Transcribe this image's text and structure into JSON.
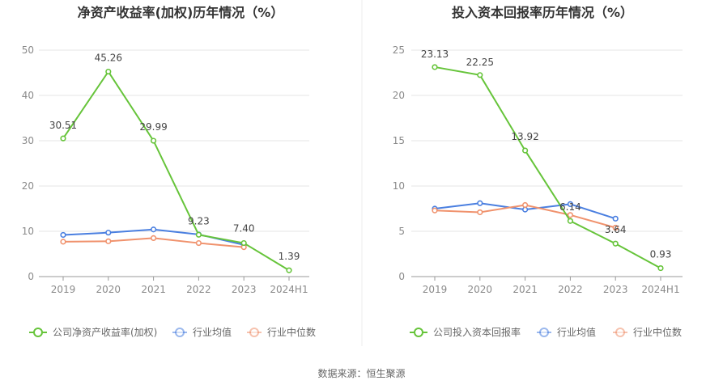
{
  "source_text": "数据来源：恒生聚源",
  "chart_data": [
    {
      "type": "line",
      "title": "净资产收益率(加权)历年情况（%）",
      "categories": [
        "2019",
        "2020",
        "2021",
        "2022",
        "2023",
        "2024H1"
      ],
      "ylim": [
        0,
        50
      ],
      "yticks": [
        0,
        10,
        20,
        30,
        40,
        50
      ],
      "grid": true,
      "legend_position": "bottom",
      "series": [
        {
          "name": "公司净资产收益率(加权)",
          "color": "#66c43a",
          "labeled": true,
          "values": [
            30.51,
            45.26,
            29.99,
            9.23,
            7.4,
            1.39
          ],
          "labels": [
            "30.51",
            "45.26",
            "29.99",
            "9.23",
            "7.40",
            "1.39"
          ]
        },
        {
          "name": "行业均值",
          "color": "#4a7fe0",
          "labeled": false,
          "values": [
            9.2,
            9.7,
            10.4,
            9.3,
            7.0,
            null
          ]
        },
        {
          "name": "行业中位数",
          "color": "#f0926d",
          "labeled": false,
          "values": [
            7.7,
            7.8,
            8.5,
            7.4,
            6.5,
            null
          ]
        }
      ]
    },
    {
      "type": "line",
      "title": "投入资本回报率历年情况（%）",
      "categories": [
        "2019",
        "2020",
        "2021",
        "2022",
        "2023",
        "2024H1"
      ],
      "ylim": [
        0,
        25
      ],
      "yticks": [
        0,
        5,
        10,
        15,
        20,
        25
      ],
      "grid": true,
      "legend_position": "bottom",
      "series": [
        {
          "name": "公司投入资本回报率",
          "color": "#66c43a",
          "labeled": true,
          "values": [
            23.13,
            22.25,
            13.92,
            6.14,
            3.64,
            0.93
          ],
          "labels": [
            "23.13",
            "22.25",
            "13.92",
            "6.14",
            "3.64",
            "0.93"
          ]
        },
        {
          "name": "行业均值",
          "color": "#4a7fe0",
          "labeled": false,
          "values": [
            7.5,
            8.1,
            7.4,
            8.0,
            6.4,
            null
          ]
        },
        {
          "name": "行业中位数",
          "color": "#f0926d",
          "labeled": false,
          "values": [
            7.3,
            7.1,
            7.9,
            6.8,
            5.4,
            null
          ]
        }
      ]
    }
  ]
}
